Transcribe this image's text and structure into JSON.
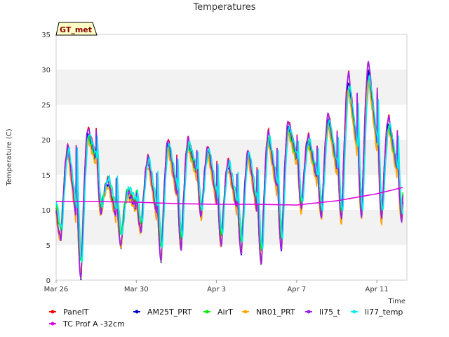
{
  "chart_data": {
    "type": "line",
    "title": "Temperatures",
    "xlabel": "Time",
    "ylabel": "Temperature (C)",
    "badge": "GT_met",
    "ylim": [
      0,
      35
    ],
    "xlim": [
      0,
      17.5
    ],
    "yticks": [
      0,
      5,
      10,
      15,
      20,
      25,
      30,
      35
    ],
    "xticks": [
      {
        "label": "Mar 26",
        "value": 0
      },
      {
        "label": "Mar 30",
        "value": 4
      },
      {
        "label": "Apr 3",
        "value": 8
      },
      {
        "label": "Apr 7",
        "value": 12
      },
      {
        "label": "Apr 11",
        "value": 16
      }
    ],
    "grid": "horizontal bands",
    "legend_position": "bottom",
    "days": [
      {
        "min": 6.0,
        "max": 18.5
      },
      {
        "min": 0.5,
        "max": 21.0
      },
      {
        "min": 9.5,
        "max": 14.0
      },
      {
        "min": 5.0,
        "max": 12.5
      },
      {
        "min": 7.0,
        "max": 17.0
      },
      {
        "min": 3.0,
        "max": 19.5
      },
      {
        "min": 4.5,
        "max": 19.5
      },
      {
        "min": 9.0,
        "max": 18.5
      },
      {
        "min": 5.0,
        "max": 16.5
      },
      {
        "min": 4.0,
        "max": 18.0
      },
      {
        "min": 2.5,
        "max": 20.5
      },
      {
        "min": 4.5,
        "max": 22.0
      },
      {
        "min": 10.0,
        "max": 20.0
      },
      {
        "min": 9.0,
        "max": 23.0
      },
      {
        "min": 8.5,
        "max": 28.5
      },
      {
        "min": 9.0,
        "max": 30.0
      },
      {
        "min": 8.5,
        "max": 22.5
      }
    ],
    "series": [
      {
        "name": "PanelT",
        "color": "#ff0000",
        "offset": 0.4,
        "scale": 1.04
      },
      {
        "name": "AM25T_PRT",
        "color": "#0000cc",
        "offset": -0.3,
        "scale": 1.0
      },
      {
        "name": "AirT",
        "color": "#00ee00",
        "offset": 0.6,
        "scale": 0.88
      },
      {
        "name": "NR01_PRT",
        "color": "#ffa500",
        "offset": -0.6,
        "scale": 0.95
      },
      {
        "name": "li75_t",
        "color": "#9a1ee8",
        "offset": 0.2,
        "scale": 1.05
      },
      {
        "name": "li77_temp",
        "color": "#00eeee",
        "offset": 0.8,
        "scale": 0.9,
        "lag": 0.06
      },
      {
        "name": "TC Prof A -32cm",
        "color": "#dd00dd",
        "x": [
          0,
          2,
          4,
          6,
          8,
          10,
          12,
          14,
          16,
          17.3
        ],
        "y": [
          11.2,
          11.2,
          11.1,
          10.9,
          10.8,
          10.8,
          10.7,
          11.3,
          12.3,
          13.2
        ]
      }
    ]
  }
}
